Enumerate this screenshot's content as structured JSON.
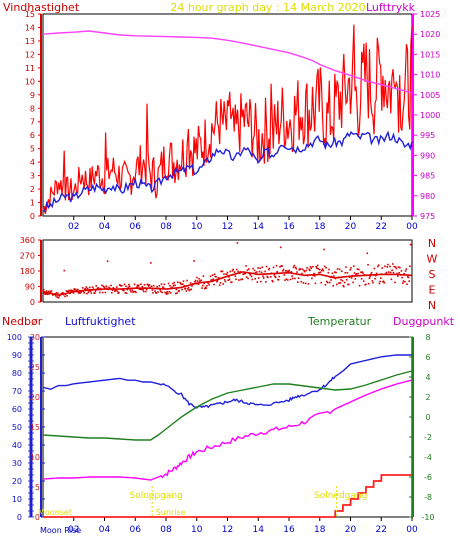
{
  "header": {
    "title": "24 hour graph day : 14 March 2020",
    "left_label": "Vindhastighet",
    "right_label": "Lufttrykk"
  },
  "colors": {
    "wind_speed": "#ff0000",
    "wind_avg": "#2020dd",
    "pressure": "#ff40ff",
    "direction": "#dd0000",
    "humidity": "#2020dd",
    "temperature": "#208020",
    "dewpoint": "#ff00ff",
    "rain": "#ff2020",
    "left_axis_wind": "#cc0000",
    "pressure_axis": "#cc00cc",
    "rain_axis": "#1010cc",
    "title": "#dddd00",
    "sun_events": "#dddd00",
    "moon_text": "#0000cc"
  },
  "chart_data": [
    {
      "id": "wind_pressure",
      "type": "line",
      "x_ticks": [
        "02",
        "04",
        "06",
        "08",
        "10",
        "12",
        "14",
        "16",
        "18",
        "20",
        "22",
        "00"
      ],
      "left_axis": {
        "name": "Vindhastighet",
        "range": [
          0,
          15
        ],
        "ticks": [
          "0",
          "1",
          "2",
          "3",
          "4",
          "5",
          "6",
          "7",
          "8",
          "9",
          "10",
          "11",
          "12",
          "13",
          "14",
          "15"
        ]
      },
      "right_axis": {
        "name": "Lufttrykk",
        "range": [
          975,
          1025
        ],
        "ticks": [
          "975",
          "980",
          "985",
          "990",
          "995",
          "1000",
          "1005",
          "1010",
          "1015",
          "1020",
          "1025"
        ]
      },
      "series": [
        {
          "key": "gust",
          "axis": "left",
          "x": [
            0,
            0.5,
            1,
            1.5,
            2,
            2.5,
            3,
            3.5,
            4,
            4.5,
            5,
            5.5,
            6,
            6.5,
            7,
            7.5,
            8,
            8.5,
            9,
            9.5,
            10,
            10.5,
            11,
            11.5,
            12,
            12.5,
            13,
            13.5,
            14,
            14.5,
            15,
            15.5,
            16,
            16.5,
            17,
            17.5,
            18,
            18.5,
            19,
            19.5,
            20,
            20.5,
            21,
            21.5,
            22,
            22.5,
            23,
            23.5,
            24
          ],
          "values": [
            0.5,
            1.5,
            2.5,
            2,
            1.8,
            3,
            2.5,
            3.2,
            2.8,
            3.5,
            3,
            2.5,
            3.5,
            4,
            3.2,
            2.8,
            4.5,
            4,
            4.5,
            5,
            4.8,
            5.5,
            6.5,
            7,
            6.5,
            6,
            7.2,
            6.8,
            5.5,
            6.5,
            6,
            7.5,
            7,
            7.8,
            8,
            7.5,
            8.5,
            7,
            8,
            9,
            10,
            8.5,
            10.5,
            9,
            11,
            9.5,
            10,
            9,
            10.5
          ]
        },
        {
          "key": "average",
          "axis": "left",
          "x": [
            0,
            0.5,
            1,
            1.5,
            2,
            2.5,
            3,
            3.5,
            4,
            4.5,
            5,
            5.5,
            6,
            6.5,
            7,
            7.5,
            8,
            8.5,
            9,
            9.5,
            10,
            10.5,
            11,
            11.5,
            12,
            12.5,
            13,
            13.5,
            14,
            14.5,
            15,
            15.5,
            16,
            16.5,
            17,
            17.5,
            18,
            18.5,
            19,
            19.5,
            20,
            20.5,
            21,
            21.5,
            22,
            22.5,
            23,
            23.5,
            24
          ],
          "values": [
            0.5,
            0.8,
            1.2,
            1.5,
            1.3,
            1.8,
            2,
            2.2,
            2,
            2.3,
            1.8,
            2.2,
            2.5,
            2.3,
            2,
            2.4,
            3,
            3.2,
            3.3,
            3.6,
            3.3,
            3.8,
            4.5,
            5,
            4.6,
            4.2,
            5,
            4.8,
            3.8,
            4.8,
            4.5,
            5.5,
            5.2,
            5,
            5.2,
            5.5,
            5.7,
            5.2,
            5.5,
            5.5,
            6.2,
            5.8,
            6,
            5.6,
            5.6,
            6,
            5.8,
            5.2,
            5.4
          ]
        },
        {
          "key": "pressure",
          "axis": "right",
          "x": [
            0,
            1,
            2,
            3,
            4,
            5,
            6,
            7,
            8,
            9,
            10,
            11,
            12,
            13,
            14,
            15,
            16,
            16.5,
            17,
            17.5,
            18,
            19,
            20,
            21,
            22,
            23,
            24
          ],
          "values": [
            1020,
            1020.3,
            1020.5,
            1020.8,
            1020.3,
            1019.8,
            1019.6,
            1019.5,
            1019.4,
            1019.3,
            1019.2,
            1019,
            1018.5,
            1017.8,
            1017,
            1016.2,
            1015.4,
            1014.8,
            1014.2,
            1013.5,
            1012.5,
            1011,
            1009.8,
            1008.5,
            1007.5,
            1006.5,
            1005.5
          ]
        }
      ]
    },
    {
      "id": "wind_direction",
      "type": "scatter",
      "x_ticks": [
        "02",
        "04",
        "06",
        "08",
        "10",
        "12",
        "14",
        "16",
        "18",
        "20",
        "22",
        "00"
      ],
      "left_axis": {
        "range": [
          0,
          360
        ],
        "ticks": [
          "0",
          "90",
          "180",
          "270",
          "360"
        ]
      },
      "right_labels": [
        "N",
        "W",
        "S",
        "E",
        "N"
      ],
      "series": [
        {
          "key": "direction",
          "x": [
            0,
            1,
            2,
            3,
            4,
            5,
            6,
            7,
            8,
            9,
            10,
            11,
            12,
            13,
            14,
            15,
            16,
            17,
            18,
            19,
            20,
            21,
            22,
            23,
            24
          ],
          "values": [
            60,
            40,
            60,
            70,
            75,
            75,
            80,
            80,
            75,
            85,
            110,
            120,
            150,
            175,
            160,
            165,
            170,
            155,
            160,
            140,
            150,
            155,
            160,
            160,
            155
          ]
        }
      ]
    },
    {
      "id": "humidity_temperature",
      "type": "line",
      "header": {
        "rain_label": "Nedbør",
        "humidity_label": "Luftfuktighet",
        "temp_label": "Temperatur",
        "dew_label": "Duggpunkt"
      },
      "x_ticks": [
        "02",
        "04",
        "06",
        "08",
        "10",
        "12",
        "14",
        "16",
        "18",
        "20",
        "22",
        "00"
      ],
      "humidity_axis": {
        "range": [
          0,
          100
        ],
        "ticks": [
          "0",
          "10",
          "20",
          "30",
          "40",
          "50",
          "60",
          "70",
          "80",
          "90",
          "100"
        ]
      },
      "rain_axis": {
        "range": [
          0,
          30
        ],
        "ticks": [
          "0",
          "5",
          "10",
          "15",
          "20",
          "25",
          "30"
        ]
      },
      "temp_axis": {
        "range": [
          -10,
          8
        ],
        "ticks": [
          "-10",
          "-8",
          "-6",
          "-4",
          "-2",
          "0",
          "2",
          "4",
          "6",
          "8"
        ]
      },
      "sun_events": [
        {
          "label": "Soloppgang",
          "x": 7.1
        },
        {
          "label": "Solnedgang",
          "x": 19.1
        }
      ],
      "bottom_events": [
        {
          "label": "Moon Rise",
          "x": 0
        },
        {
          "label": "Moonset",
          "x": 0.1
        },
        {
          "label": "Sunrise",
          "x": 7.2
        }
      ],
      "series": [
        {
          "key": "humidity",
          "axis": "humidity",
          "x": [
            0,
            0.5,
            1,
            1.5,
            2,
            3,
            4,
            5,
            5.5,
            6,
            6.5,
            7,
            8,
            9,
            9.5,
            10,
            10.5,
            11,
            11.5,
            12,
            12.5,
            13,
            13.5,
            14,
            15,
            16,
            16.5,
            17,
            18,
            18.5,
            19,
            19.5,
            20,
            21,
            22,
            23,
            24
          ],
          "values": [
            72,
            71,
            73,
            73,
            74,
            75,
            76,
            77,
            76,
            76,
            75,
            75,
            73,
            68,
            63,
            61,
            61,
            62,
            63,
            64,
            65,
            64,
            63,
            62,
            63,
            65,
            67,
            68,
            71,
            74,
            78,
            81,
            85,
            87,
            89,
            90,
            90
          ]
        },
        {
          "key": "temperature",
          "axis": "temp",
          "x": [
            0,
            1,
            2,
            3,
            4,
            5,
            6,
            7,
            7.5,
            8,
            8.5,
            9,
            9.5,
            10,
            10.5,
            11,
            11.5,
            12,
            13,
            14,
            15,
            16,
            17,
            18,
            19,
            20,
            21,
            22,
            23,
            24
          ],
          "values": [
            -1.8,
            -1.9,
            -2,
            -2.1,
            -2.1,
            -2.2,
            -2.3,
            -2.3,
            -1.8,
            -1.2,
            -0.6,
            0,
            0.5,
            1,
            1.4,
            1.8,
            2.1,
            2.4,
            2.7,
            3,
            3.3,
            3.3,
            3.1,
            2.9,
            2.7,
            2.8,
            3.2,
            3.7,
            4.2,
            4.6
          ]
        },
        {
          "key": "dewpoint",
          "axis": "temp",
          "x": [
            0,
            1,
            2,
            3,
            4,
            5,
            6,
            7,
            7.5,
            8,
            8.5,
            9,
            9.5,
            10,
            11,
            12,
            13,
            14,
            15,
            16,
            17,
            18,
            19,
            20,
            21,
            22,
            23,
            24
          ],
          "values": [
            -6.2,
            -6.1,
            -6.1,
            -6,
            -6,
            -6,
            -6.1,
            -6.3,
            -6,
            -5.7,
            -5.2,
            -4.6,
            -4,
            -3.5,
            -3,
            -2.5,
            -2,
            -1.6,
            -1.3,
            -1,
            -0.5,
            0.2,
            0.8,
            1.5,
            2.2,
            2.8,
            3.3,
            3.7
          ]
        },
        {
          "key": "rain",
          "axis": "rain",
          "x": [
            0,
            19,
            19.01,
            19.5,
            19.51,
            20,
            20.01,
            20.5,
            20.51,
            21,
            21.01,
            21.5,
            21.51,
            22,
            22.01,
            24
          ],
          "values": [
            0,
            0,
            1,
            1,
            2,
            2,
            3,
            3,
            4,
            4,
            5,
            5,
            6,
            6,
            7,
            7
          ]
        }
      ]
    }
  ]
}
